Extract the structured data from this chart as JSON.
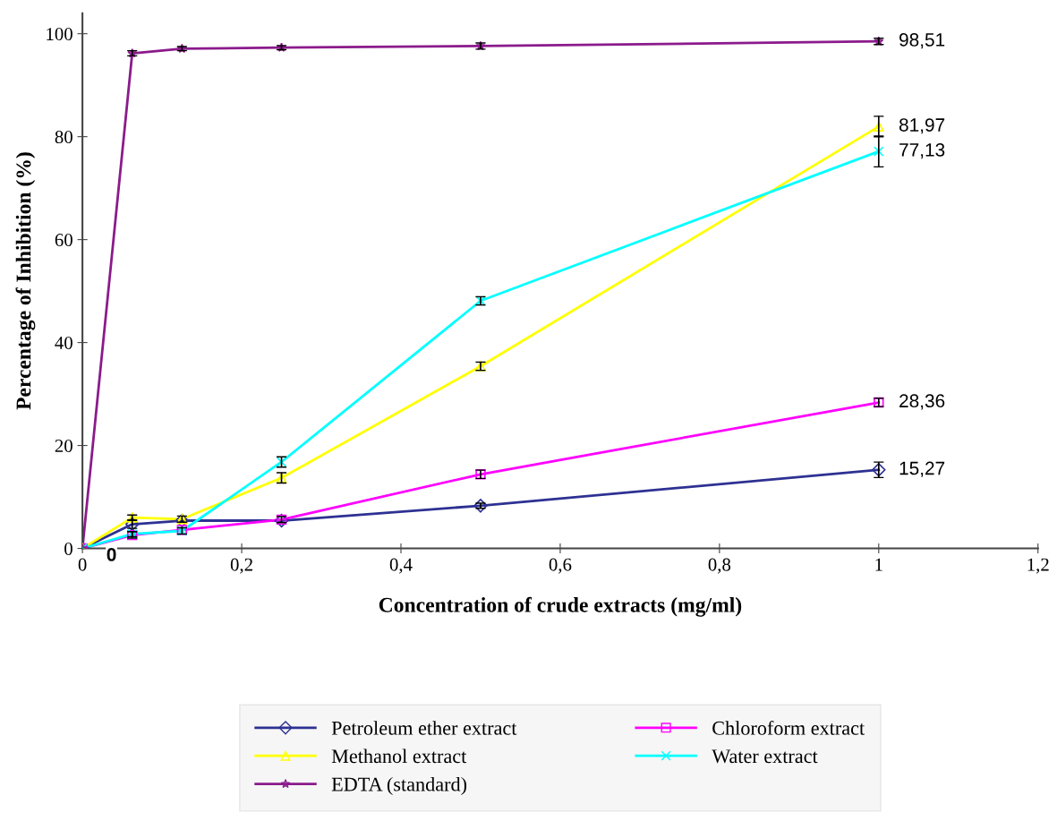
{
  "chart_data": {
    "type": "line",
    "xlabel": "Concentration of crude extracts (mg/ml)",
    "ylabel": "Percentage of Inhibition (%)",
    "x": [
      0,
      0.0625,
      0.125,
      0.25,
      0.5,
      1
    ],
    "series": [
      {
        "name": "Petroleum ether extract",
        "color": "#2e3192",
        "marker": "diamond",
        "values": [
          0,
          4.7,
          5.4,
          5.4,
          8.3,
          15.27
        ],
        "errors": [
          null,
          0.8,
          null,
          null,
          0.5,
          1.5
        ],
        "value_labels": [
          "0",
          null,
          null,
          null,
          null,
          "15,27"
        ]
      },
      {
        "name": "Chloroform extract",
        "color": "#ff00ff",
        "marker": "square",
        "values": [
          0,
          2.6,
          3.6,
          5.6,
          14.4,
          28.36
        ],
        "errors": [
          null,
          0.6,
          null,
          0.6,
          0.8,
          0.8
        ],
        "value_labels": [
          null,
          null,
          null,
          null,
          null,
          "28,36"
        ]
      },
      {
        "name": "Methanol extract",
        "color": "#ffff00",
        "marker": "triangle",
        "values": [
          0,
          6.0,
          5.7,
          13.7,
          35.4,
          81.97
        ],
        "errors": [
          null,
          0.5,
          0.6,
          1.0,
          0.8,
          2.0
        ],
        "value_labels": [
          null,
          null,
          null,
          null,
          null,
          "81,97"
        ]
      },
      {
        "name": "Water extract",
        "color": "#00ffff",
        "marker": "cross",
        "values": [
          0,
          2.8,
          3.4,
          16.8,
          48.1,
          77.13
        ],
        "errors": [
          null,
          0.5,
          0.6,
          1.0,
          0.8,
          3.0
        ],
        "value_labels": [
          null,
          null,
          null,
          null,
          null,
          "77,13"
        ]
      },
      {
        "name": "EDTA (standard)",
        "color": "#8b1a8b",
        "marker": "star",
        "values": [
          0,
          96.2,
          97.1,
          97.3,
          97.6,
          98.51
        ],
        "errors": [
          null,
          0.5,
          0.4,
          0.4,
          0.6,
          0.6
        ],
        "value_labels": [
          null,
          null,
          null,
          null,
          null,
          "98,51"
        ]
      }
    ],
    "xlim": [
      0,
      1.2
    ],
    "ylim": [
      0,
      104
    ],
    "xticks": [
      0,
      {
        "value": 0.2,
        "label": "0,2"
      },
      {
        "value": 0.4,
        "label": "0,4"
      },
      {
        "value": 0.6,
        "label": "0,6"
      },
      {
        "value": 0.8,
        "label": "0,8"
      },
      1,
      {
        "value": 1.2,
        "label": "1,2"
      }
    ],
    "yticks": [
      0,
      20,
      40,
      60,
      80,
      100
    ],
    "grid": false,
    "legend": "bottom",
    "line_style": "solid"
  }
}
